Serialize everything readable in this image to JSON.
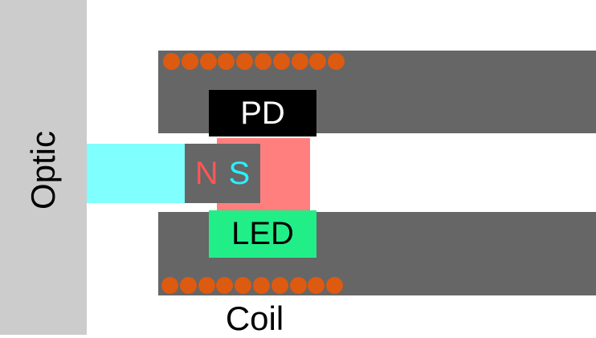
{
  "labels": {
    "optic": "Optic",
    "pd": "PD",
    "magnet_n": "N",
    "magnet_s": "S",
    "led": "LED",
    "coil": "Coil"
  },
  "coil": {
    "turns_top": 10,
    "turns_bottom": 10
  },
  "colors": {
    "optic_panel": "#cccccc",
    "optic_beam": "#80ffff",
    "core": "#666666",
    "coil_wire": "#dd5a11",
    "pd": "#000000",
    "led": "#22ee88",
    "pink_block": "#ff7f7f",
    "north": "#ff5555",
    "south": "#2af0ff"
  }
}
